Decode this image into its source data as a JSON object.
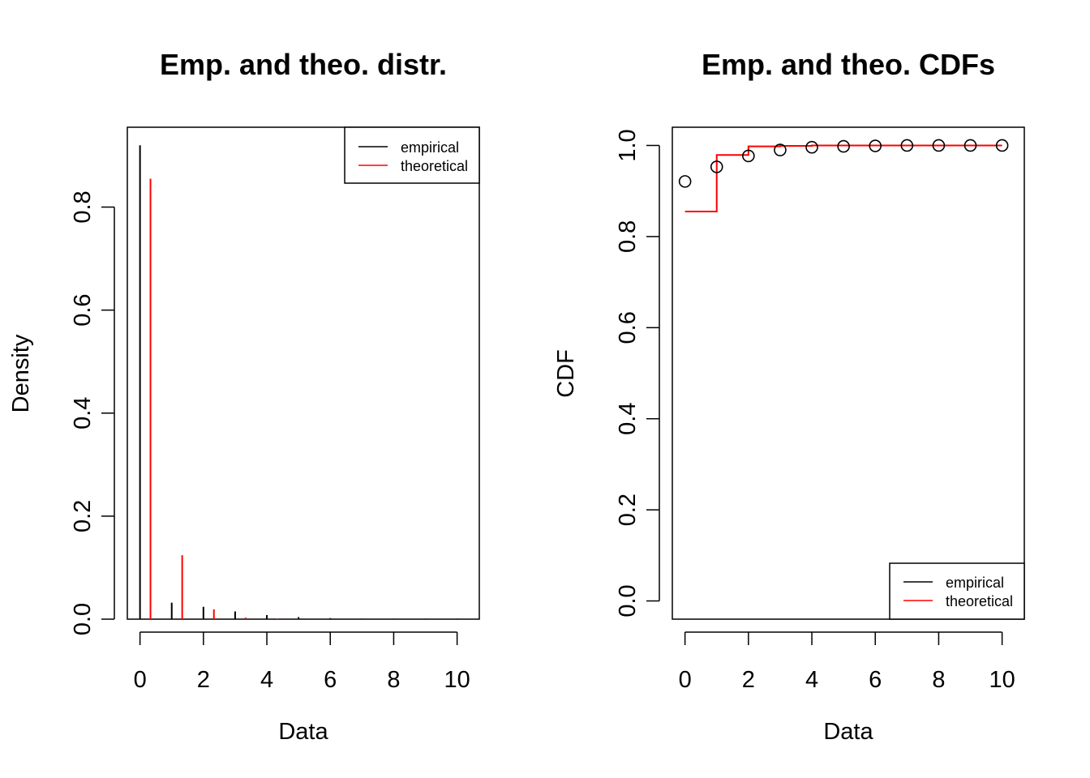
{
  "chart_data": [
    {
      "type": "bar",
      "title": "Emp. and theo. distr.",
      "xlabel": "Data",
      "ylabel": "Density",
      "xlim": [
        -0.4,
        10.7
      ],
      "ylim": [
        0,
        0.955
      ],
      "x_ticks": [
        "0",
        "2",
        "4",
        "6",
        "8",
        "10"
      ],
      "y_ticks": [
        "0.0",
        "0.2",
        "0.4",
        "0.6",
        "0.8"
      ],
      "legend": {
        "position": "top-right",
        "entries": [
          "empirical",
          "theoretical"
        ]
      },
      "series": [
        {
          "name": "empirical",
          "color": "#000000",
          "x": [
            0,
            1,
            2,
            3,
            4,
            5,
            6,
            7,
            8,
            9,
            10
          ],
          "values": [
            0.92,
            0.032,
            0.024,
            0.015,
            0.008,
            0.004,
            0.002,
            0.001,
            0.001,
            0.001,
            0.001
          ]
        },
        {
          "name": "theoretical",
          "color": "#ff0000",
          "x": [
            0,
            1,
            2,
            3,
            4,
            5,
            6,
            7,
            8,
            9,
            10
          ],
          "values": [
            0.855,
            0.124,
            0.019,
            0.003,
            0.001,
            0.0003,
            0.0001,
            0.0001,
            0.0001,
            0.0001,
            0.0001
          ]
        }
      ]
    },
    {
      "type": "line",
      "title": "Emp. and theo. CDFs",
      "xlabel": "Data",
      "ylabel": "CDF",
      "xlim": [
        -0.4,
        10.7
      ],
      "ylim": [
        -0.04,
        1.04
      ],
      "x_ticks": [
        "0",
        "2",
        "4",
        "6",
        "8",
        "10"
      ],
      "y_ticks": [
        "0.0",
        "0.2",
        "0.4",
        "0.6",
        "0.8",
        "1.0"
      ],
      "legend": {
        "position": "bottom-right",
        "entries": [
          "empirical",
          "theoretical"
        ]
      },
      "series": [
        {
          "name": "empirical",
          "color": "#000000",
          "style": "points",
          "x": [
            0,
            1,
            2,
            3,
            4,
            5,
            6,
            7,
            8,
            9,
            10
          ],
          "values": [
            0.921,
            0.953,
            0.977,
            0.99,
            0.996,
            0.998,
            0.999,
            1.0,
            1.0,
            1.0,
            1.0
          ]
        },
        {
          "name": "theoretical",
          "color": "#ff0000",
          "style": "step",
          "x": [
            0,
            1,
            2,
            3,
            4,
            5,
            6,
            7,
            8,
            9,
            10
          ],
          "values": [
            0.855,
            0.979,
            0.998,
            0.999,
            1.0,
            1.0,
            1.0,
            1.0,
            1.0,
            1.0,
            1.0
          ]
        }
      ]
    }
  ]
}
